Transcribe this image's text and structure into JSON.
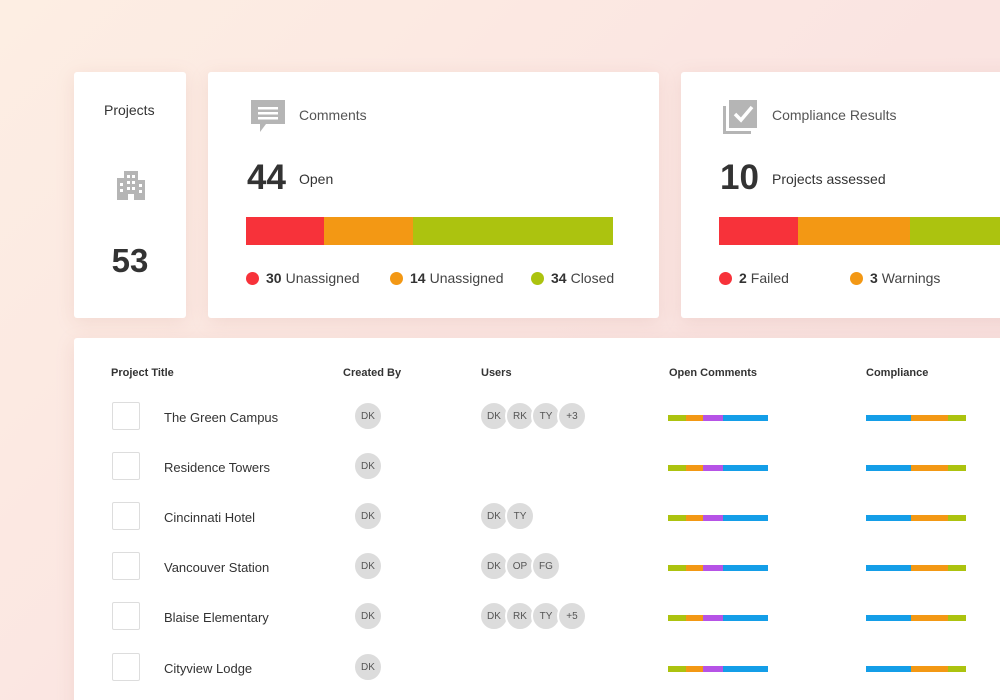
{
  "colors": {
    "red": "#f7323a",
    "orange": "#f39814",
    "green": "#acc30f",
    "purple": "#b653e6",
    "blue": "#149ee8",
    "icon_gray": "#b5b5b5"
  },
  "projects_card": {
    "label": "Projects",
    "icon": "building-icon",
    "value": "53"
  },
  "comments_card": {
    "label": "Comments",
    "icon": "comment-icon",
    "count": "44",
    "count_label": "Open",
    "segments": [
      {
        "value": "30",
        "label": "Unassigned",
        "color": "#f7323a"
      },
      {
        "value": "14",
        "label": "Unassigned",
        "color": "#f39814"
      },
      {
        "value": "34",
        "label": "Closed",
        "color": "#acc30f"
      }
    ]
  },
  "compliance_card": {
    "label": "Compliance Results",
    "icon": "checklist-icon",
    "count": "10",
    "count_label": "Projects assessed",
    "segments": [
      {
        "value": "2",
        "label": "Failed",
        "color": "#f7323a"
      },
      {
        "value": "3",
        "label": "Warnings",
        "color": "#f39814"
      },
      {
        "value": "",
        "label": "",
        "color": "#acc30f"
      }
    ]
  },
  "table": {
    "headers": [
      "Project Title",
      "Created By",
      "Users",
      "Open Comments",
      "Compliance"
    ],
    "rows": [
      {
        "title": "The Green Campus",
        "created_by": "DK",
        "users": [
          "DK",
          "RK",
          "TY",
          "+3"
        ]
      },
      {
        "title": "Residence Towers",
        "created_by": "DK",
        "users": []
      },
      {
        "title": "Cincinnati Hotel",
        "created_by": "DK",
        "users": [
          "DK",
          "TY"
        ]
      },
      {
        "title": "Vancouver Station",
        "created_by": "DK",
        "users": [
          "DK",
          "OP",
          "FG"
        ]
      },
      {
        "title": "Blaise Elementary",
        "created_by": "DK",
        "users": [
          "DK",
          "RK",
          "TY",
          "+5"
        ]
      },
      {
        "title": "Cityview Lodge",
        "created_by": "DK",
        "users": []
      }
    ]
  }
}
